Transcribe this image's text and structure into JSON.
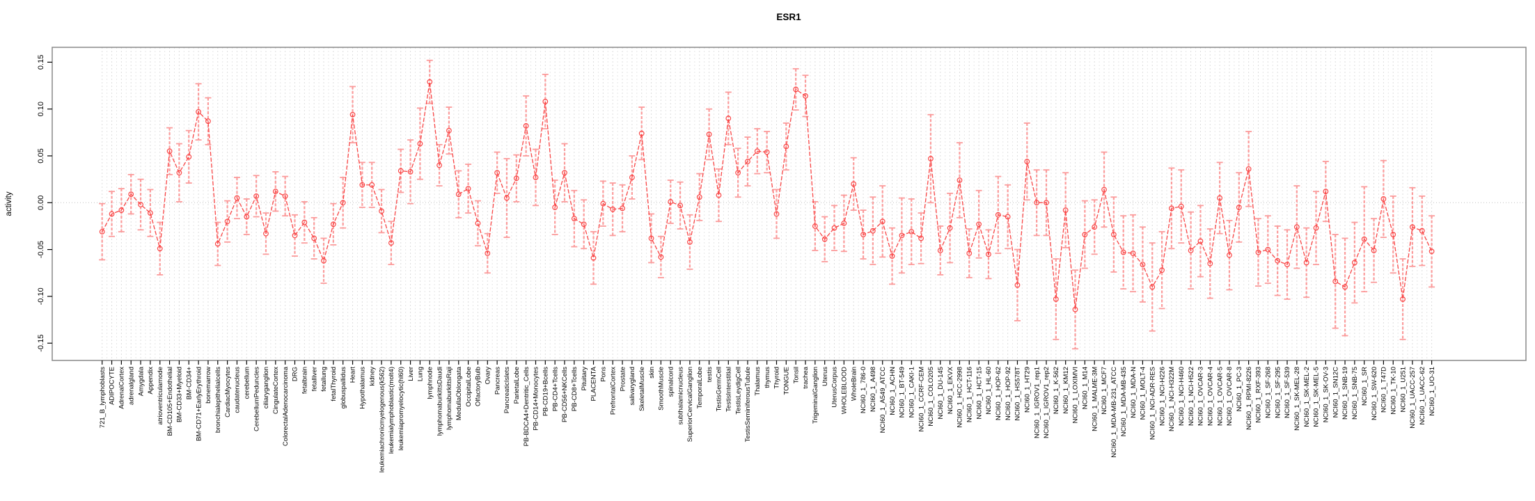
{
  "chart_data": {
    "type": "line",
    "title": "ESR1",
    "ylabel": "activity",
    "xlabel": "",
    "ylim": [
      -0.15,
      0.15
    ],
    "grid": "vertical-dashed",
    "legend": "none",
    "error_bars": true,
    "ytick_values": [
      0.15,
      0.1,
      0.05,
      0.0,
      -0.05,
      -0.1,
      -0.15
    ],
    "ytick_labels": [
      "0.15",
      "0.10",
      "0.05",
      "0.00",
      "-0.05",
      "-0.10",
      "-0.15"
    ],
    "colors": {
      "series": "#f94545",
      "error": "#fb9b9b",
      "grid": "#dcdcdc",
      "grid_minor": "#e6e6e6",
      "zero_line": "#c0c0c0",
      "box": "#888888",
      "axis": "#000000"
    },
    "categories": [
      "721_B_lymphoblasts",
      "ADIPOCYTE",
      "AdrenalCortex",
      "adrenalgland",
      "Amygdala",
      "Appendix",
      "atrioventricularnode",
      "BM-CD105+Endothelial",
      "BM-CD33+Myeloid",
      "BM-CD34+",
      "BM-CD71+EarlyErythroid",
      "bonemarrow",
      "bronchialepithelialcells",
      "CardiacMyocytes",
      "caudatenucleus",
      "cerebellum",
      "CerebellumPeduncles",
      "ciliaryganglion",
      "CingulateCortex",
      "ColorectalAdenocarcinoma",
      "DRG",
      "fetalbrain",
      "fetalliver",
      "fetallung",
      "fetalThyroid",
      "globuspallidus",
      "Heart",
      "Hypothalamus",
      "kidney",
      "leukemiachronicmyelogenous(k562)",
      "leukemialymphoblastic(molt4)",
      "leukemiapromyelocytic(hl60)",
      "Liver",
      "Lung",
      "lymphnode",
      "lymphomaburkittsDaudi",
      "lymphomaburkittsRaji",
      "MedullaOblongata",
      "OccipitalLobe",
      "OlfactoryBulb",
      "Ovary",
      "Pancreas",
      "PancreaticIslets",
      "ParietalLobe",
      "PB-BDCA4+Dentritic_Cells",
      "PB-CD14+Monocytes",
      "PB-CD19+Bcells",
      "PB-CD4+Tcells",
      "PB-CD56+NKCells",
      "PB-CD8+Tcells",
      "Pituitary",
      "PLACENTA",
      "Pons",
      "PrefrontalCortex",
      "Prostate",
      "salivarygland",
      "SkeletalMuscle",
      "skin",
      "SmoothMuscle",
      "spinalcord",
      "subthalamicnucleus",
      "SuperiorCervicalGanglion",
      "TemporalLobe",
      "testis",
      "TestisGermCell",
      "TestisInterstitial",
      "TestisLeydigCell",
      "TestisSeminiferousTubule",
      "Thalamus",
      "thymus",
      "Thyroid",
      "TONGUE",
      "Tonsil",
      "trachea",
      "TrigeminalGanglion",
      "Uterus",
      "UterusCorpus",
      "WHOLEBLOOD",
      "WholeBrain",
      "NCI60_1_786-0",
      "NCI60_1_A498",
      "NCI60_1_A549_ATCC",
      "NCI60_1_ACHN",
      "NCI60_1_BT-549",
      "NCI60_1_CAKI-1",
      "NCI60_1_CCRF-CEM",
      "NCI60_1_COLO205",
      "NCI60_1_DU-145",
      "NCI60_1_EKVX",
      "NCI60_1_HCC-2998",
      "NCI60_1_HCT-116",
      "NCI60_1_HCT-15",
      "NCI60_1_HL-60",
      "NCI60_1_HOP-62",
      "NCI60_1_HOP-92",
      "NCI60_1_HS578T",
      "NCI60_1_HT29",
      "NCI60_1_IGROV1_rep1",
      "NCI60_1_IGROV1_rep2",
      "NCI60_1_K-562",
      "NCI60_1_KM12",
      "NCI60_1_LOXIMVI",
      "NCI60_1_M14",
      "NCI60_1_MALME-3M",
      "NCI60_1_MCF7",
      "NCI60_1_MDA-MB-231_ATCC",
      "NCI60_1_MDA-MB-435",
      "NCI60_1_MDA-N",
      "NCI60_1_MOLT-4",
      "NCI60_1_NCI-ADR-RES",
      "NCI60_1_NCI-H226",
      "NCI60_1_NCI-H322M",
      "NCI60_1_NCI-H460",
      "NCI60_1_NCI-H522",
      "NCI60_1_OVCAR-3",
      "NCI60_1_OVCAR-4",
      "NCI60_1_OVCAR-5",
      "NCI60_1_OVCAR-8",
      "NCI60_1_PC-3",
      "NCI60_1_RPMI-8226",
      "NCI60_1_RXF-393",
      "NCI60_1_SF-268",
      "NCI60_1_SF-295",
      "NCI60_1_SF-539",
      "NCI60_1_SK-MEL-28",
      "NCI60_1_SK-MEL-2",
      "NCI60_1_SK-MEL-5",
      "NCI60_1_SK-OV-3",
      "NCI60_1_SN12C",
      "NCI60_1_SNB-19",
      "NCI60_1_SNB-75",
      "NCI60_1_SR",
      "NCI60_1_SW-620",
      "NCI60_1_T47D",
      "NCI60_1_TK-10",
      "NCI60_1_U251",
      "NCI60_1_UACC-257",
      "NCI60_1_UACC-62",
      "NCI60_1_UO-31"
    ],
    "values": [
      -0.031,
      -0.012,
      -0.008,
      0.009,
      -0.002,
      -0.011,
      -0.049,
      0.055,
      0.032,
      0.049,
      0.097,
      0.087,
      -0.044,
      -0.02,
      0.005,
      -0.015,
      0.007,
      -0.033,
      0.012,
      0.007,
      -0.035,
      -0.021,
      -0.038,
      -0.062,
      -0.023,
      0.0,
      0.094,
      0.019,
      0.019,
      -0.009,
      -0.043,
      0.034,
      0.033,
      0.063,
      0.129,
      0.04,
      0.077,
      0.009,
      0.015,
      -0.022,
      -0.054,
      0.032,
      0.005,
      0.026,
      0.082,
      0.027,
      0.108,
      -0.005,
      0.032,
      -0.017,
      -0.023,
      -0.059,
      -0.001,
      -0.007,
      -0.006,
      0.027,
      0.074,
      -0.038,
      -0.058,
      0.001,
      -0.003,
      -0.042,
      0.006,
      0.073,
      0.008,
      0.09,
      0.032,
      0.044,
      0.055,
      0.054,
      -0.012,
      0.06,
      0.121,
      0.114,
      -0.025,
      -0.039,
      -0.027,
      -0.022,
      0.02,
      -0.034,
      -0.03,
      -0.02,
      -0.057,
      -0.035,
      -0.031,
      -0.038,
      0.047,
      -0.051,
      -0.027,
      0.024,
      -0.054,
      -0.023,
      -0.055,
      -0.013,
      -0.015,
      -0.088,
      0.044,
      0.0,
      0.0,
      -0.103,
      -0.008,
      -0.114,
      -0.034,
      -0.026,
      0.014,
      -0.034,
      -0.053,
      -0.054,
      -0.066,
      -0.09,
      -0.072,
      -0.006,
      -0.004,
      -0.051,
      -0.041,
      -0.065,
      0.005,
      -0.056,
      -0.005,
      0.036,
      -0.053,
      -0.05,
      -0.062,
      -0.066,
      -0.026,
      -0.064,
      -0.027,
      0.012,
      -0.084,
      -0.09,
      -0.064,
      -0.039,
      -0.051,
      0.004,
      -0.034,
      -0.103,
      -0.026,
      -0.03,
      -0.052
    ],
    "errors": [
      0.03,
      0.024,
      0.023,
      0.021,
      0.027,
      0.025,
      0.028,
      0.025,
      0.031,
      0.028,
      0.03,
      0.025,
      0.023,
      0.022,
      0.022,
      0.019,
      0.022,
      0.022,
      0.021,
      0.021,
      0.022,
      0.022,
      0.022,
      0.024,
      0.022,
      0.027,
      0.03,
      0.024,
      0.024,
      0.023,
      0.023,
      0.023,
      0.034,
      0.038,
      0.023,
      0.022,
      0.025,
      0.025,
      0.026,
      0.024,
      0.021,
      0.022,
      0.042,
      0.025,
      0.032,
      0.03,
      0.029,
      0.029,
      0.031,
      0.03,
      0.026,
      0.028,
      0.024,
      0.028,
      0.025,
      0.023,
      0.028,
      0.026,
      0.022,
      0.023,
      0.025,
      0.029,
      0.025,
      0.027,
      0.028,
      0.028,
      0.026,
      0.026,
      0.024,
      0.022,
      0.026,
      0.025,
      0.022,
      0.022,
      0.026,
      0.024,
      0.024,
      0.03,
      0.028,
      0.026,
      0.036,
      0.038,
      0.03,
      0.04,
      0.035,
      0.027,
      0.047,
      0.026,
      0.037,
      0.04,
      0.026,
      0.036,
      0.026,
      0.041,
      0.034,
      0.038,
      0.041,
      0.035,
      0.035,
      0.043,
      0.04,
      0.042,
      0.036,
      0.029,
      0.04,
      0.04,
      0.039,
      0.041,
      0.04,
      0.047,
      0.041,
      0.043,
      0.039,
      0.041,
      0.038,
      0.037,
      0.038,
      0.037,
      0.037,
      0.04,
      0.036,
      0.036,
      0.037,
      0.037,
      0.044,
      0.037,
      0.039,
      0.032,
      0.05,
      0.052,
      0.043,
      0.056,
      0.034,
      0.041,
      0.041,
      0.043,
      0.042,
      0.037,
      0.038
    ]
  }
}
